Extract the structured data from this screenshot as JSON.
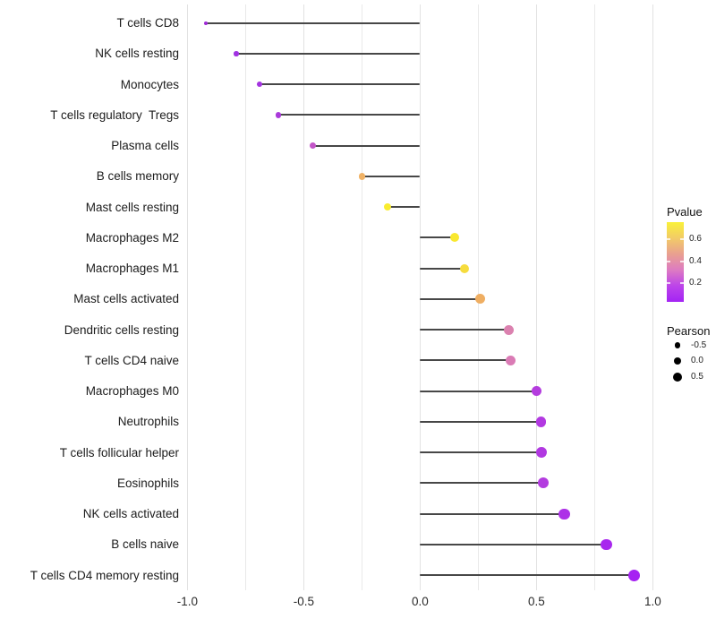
{
  "chart_data": {
    "type": "lollipop",
    "title": "",
    "xlabel": "",
    "ylabel": "",
    "xlim": [
      -1.012,
      1.012
    ],
    "grid": "vertical-only",
    "x_ticks": [
      {
        "label": "-1.0",
        "value": -1.0
      },
      {
        "label": "-0.5",
        "value": -0.5
      },
      {
        "label": "0.0",
        "value": 0.0
      },
      {
        "label": "0.5",
        "value": 0.5
      },
      {
        "label": "1.0",
        "value": 1.0
      }
    ],
    "x_minor_gridlines": [
      -0.75,
      -0.25,
      0.25,
      0.75
    ],
    "baseline_value": 0.0,
    "series_name": "Pearson",
    "points": [
      {
        "label": "T cells CD8",
        "pearson": -0.92,
        "dot_color": "#9F2AD6",
        "dot_diameter": 4.0
      },
      {
        "label": "NK cells resting",
        "pearson": -0.79,
        "dot_color": "#A132E2",
        "dot_diameter": 5.4
      },
      {
        "label": "Monocytes",
        "pearson": -0.69,
        "dot_color": "#A434E0",
        "dot_diameter": 5.8
      },
      {
        "label": "T cells regulatory  Tregs",
        "pearson": -0.61,
        "dot_color": "#AA3ADA",
        "dot_diameter": 6.2
      },
      {
        "label": "Plasma cells",
        "pearson": -0.46,
        "dot_color": "#C355C8",
        "dot_diameter": 7.2
      },
      {
        "label": "B cells memory",
        "pearson": -0.25,
        "dot_color": "#F0B266",
        "dot_diameter": 7.6
      },
      {
        "label": "Mast cells resting",
        "pearson": -0.14,
        "dot_color": "#F9EC2F",
        "dot_diameter": 8.6
      },
      {
        "label": "Macrophages M2",
        "pearson": 0.15,
        "dot_color": "#F9E82F",
        "dot_diameter": 10.0
      },
      {
        "label": "Macrophages M1",
        "pearson": 0.19,
        "dot_color": "#F6DC3D",
        "dot_diameter": 10.3
      },
      {
        "label": "Mast cells activated",
        "pearson": 0.26,
        "dot_color": "#EFAE62",
        "dot_diameter": 11.0
      },
      {
        "label": "Dendritic cells resting",
        "pearson": 0.38,
        "dot_color": "#DB81AF",
        "dot_diameter": 11.0
      },
      {
        "label": "T cells CD4 naive",
        "pearson": 0.39,
        "dot_color": "#DA7BB5",
        "dot_diameter": 11.2
      },
      {
        "label": "Macrophages M0",
        "pearson": 0.5,
        "dot_color": "#B43CDE",
        "dot_diameter": 11.6
      },
      {
        "label": "Neutrophils",
        "pearson": 0.52,
        "dot_color": "#B239E1",
        "dot_diameter": 11.8
      },
      {
        "label": "T cells follicular helper",
        "pearson": 0.52,
        "dot_color": "#B138E1",
        "dot_diameter": 11.9
      },
      {
        "label": "Eosinophils",
        "pearson": 0.53,
        "dot_color": "#B33CDF",
        "dot_diameter": 12.0
      },
      {
        "label": "NK cells activated",
        "pearson": 0.62,
        "dot_color": "#AD30E7",
        "dot_diameter": 12.4
      },
      {
        "label": "B cells naive",
        "pearson": 0.8,
        "dot_color": "#A827EE",
        "dot_diameter": 12.8
      },
      {
        "label": "T cells CD4 memory resting",
        "pearson": 0.92,
        "dot_color": "#A621F2",
        "dot_diameter": 13.4
      }
    ],
    "legend": {
      "position": "right",
      "pvalue": {
        "title": "Pvalue",
        "tick_labels": [
          "0.6",
          "0.4",
          "0.2"
        ],
        "gradient_top_to_bottom": [
          "#F9F139",
          "#F2CB67",
          "#E9A090",
          "#DD7BC2",
          "#BC44EA",
          "#A424F4"
        ]
      },
      "pearson": {
        "title": "Pearson",
        "items": [
          {
            "label": "-0.5",
            "dot_diameter": 6.7
          },
          {
            "label": "0.0",
            "dot_diameter": 8.7
          },
          {
            "label": "0.5",
            "dot_diameter": 10.3
          }
        ]
      }
    },
    "colors": {
      "stem": "#474747",
      "grid_major": "#e2e2e2",
      "grid_minor": "#e9e9e9",
      "background": "#ffffff"
    }
  }
}
